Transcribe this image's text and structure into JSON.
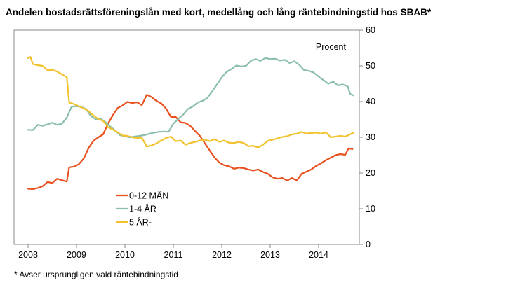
{
  "title": "Andelen bostadsrättsföreningslån med kort, medellång och lång räntebindningstid hos SBAB*",
  "footnote": "* Avser ursprungligen vald räntebindningstid",
  "chart_data": {
    "type": "line",
    "ylabel": "Procent",
    "ylim": [
      0,
      60
    ],
    "yticks": [
      0,
      10,
      20,
      30,
      40,
      50,
      60
    ],
    "y_axis_side": "right",
    "xlim": [
      2008,
      2014.75
    ],
    "xticks": [
      "2008",
      "2009",
      "2010",
      "2011",
      "2012",
      "2013",
      "2014"
    ],
    "grid": false,
    "legend_placement": "center-left",
    "series": [
      {
        "name": "0-12 MÅN",
        "color": "#e8501e",
        "points": [
          [
            2008.0,
            15.6
          ],
          [
            2008.1,
            15.5
          ],
          [
            2008.2,
            15.8
          ],
          [
            2008.3,
            16.3
          ],
          [
            2008.4,
            17.5
          ],
          [
            2008.5,
            17.2
          ],
          [
            2008.6,
            18.4
          ],
          [
            2008.7,
            18.0
          ],
          [
            2008.8,
            17.6
          ],
          [
            2008.85,
            21.6
          ],
          [
            2008.95,
            21.8
          ],
          [
            2009.05,
            22.5
          ],
          [
            2009.15,
            24.1
          ],
          [
            2009.25,
            27.0
          ],
          [
            2009.35,
            29.0
          ],
          [
            2009.45,
            30.0
          ],
          [
            2009.55,
            30.8
          ],
          [
            2009.65,
            33.8
          ],
          [
            2009.75,
            36.2
          ],
          [
            2009.85,
            38.2
          ],
          [
            2009.95,
            38.9
          ],
          [
            2010.05,
            39.9
          ],
          [
            2010.15,
            39.6
          ],
          [
            2010.25,
            39.8
          ],
          [
            2010.35,
            39.0
          ],
          [
            2010.45,
            41.9
          ],
          [
            2010.55,
            41.3
          ],
          [
            2010.65,
            40.2
          ],
          [
            2010.75,
            39.5
          ],
          [
            2010.85,
            38.0
          ],
          [
            2010.95,
            35.7
          ],
          [
            2011.05,
            35.7
          ],
          [
            2011.15,
            34.2
          ],
          [
            2011.25,
            34.0
          ],
          [
            2011.35,
            33.2
          ],
          [
            2011.45,
            31.7
          ],
          [
            2011.55,
            30.4
          ],
          [
            2011.65,
            28.3
          ],
          [
            2011.75,
            26.3
          ],
          [
            2011.85,
            24.4
          ],
          [
            2011.95,
            22.9
          ],
          [
            2012.05,
            22.2
          ],
          [
            2012.15,
            21.9
          ],
          [
            2012.25,
            21.2
          ],
          [
            2012.35,
            21.5
          ],
          [
            2012.45,
            21.4
          ],
          [
            2012.55,
            21.0
          ],
          [
            2012.65,
            20.7
          ],
          [
            2012.75,
            21.0
          ],
          [
            2012.85,
            20.3
          ],
          [
            2012.95,
            19.8
          ],
          [
            2013.05,
            18.8
          ],
          [
            2013.15,
            18.4
          ],
          [
            2013.25,
            18.6
          ],
          [
            2013.35,
            17.9
          ],
          [
            2013.45,
            18.6
          ],
          [
            2013.55,
            17.9
          ],
          [
            2013.65,
            19.8
          ],
          [
            2013.75,
            20.4
          ],
          [
            2013.85,
            21.0
          ],
          [
            2013.95,
            22.0
          ],
          [
            2014.05,
            22.7
          ],
          [
            2014.15,
            23.6
          ],
          [
            2014.25,
            24.3
          ],
          [
            2014.35,
            25.0
          ],
          [
            2014.45,
            25.3
          ],
          [
            2014.55,
            25.1
          ],
          [
            2014.62,
            26.9
          ],
          [
            2014.7,
            26.7
          ]
        ]
      },
      {
        "name": "1-4 ÅR",
        "color": "#8bbfa9",
        "points": [
          [
            2008.0,
            32.1
          ],
          [
            2008.1,
            32.0
          ],
          [
            2008.2,
            33.5
          ],
          [
            2008.3,
            33.2
          ],
          [
            2008.4,
            33.6
          ],
          [
            2008.5,
            34.1
          ],
          [
            2008.6,
            33.5
          ],
          [
            2008.7,
            33.8
          ],
          [
            2008.8,
            35.5
          ],
          [
            2008.9,
            38.6
          ],
          [
            2009.0,
            38.7
          ],
          [
            2009.1,
            38.5
          ],
          [
            2009.2,
            37.9
          ],
          [
            2009.3,
            35.9
          ],
          [
            2009.4,
            35.0
          ],
          [
            2009.5,
            35.2
          ],
          [
            2009.6,
            34.2
          ],
          [
            2009.7,
            33.0
          ],
          [
            2009.8,
            31.9
          ],
          [
            2009.9,
            30.6
          ],
          [
            2010.0,
            30.3
          ],
          [
            2010.1,
            30.0
          ],
          [
            2010.2,
            30.2
          ],
          [
            2010.3,
            30.4
          ],
          [
            2010.4,
            30.6
          ],
          [
            2010.5,
            31.0
          ],
          [
            2010.6,
            31.3
          ],
          [
            2010.7,
            31.5
          ],
          [
            2010.8,
            31.6
          ],
          [
            2010.9,
            31.5
          ],
          [
            2011.0,
            33.8
          ],
          [
            2011.1,
            35.1
          ],
          [
            2011.2,
            36.3
          ],
          [
            2011.3,
            37.9
          ],
          [
            2011.4,
            38.6
          ],
          [
            2011.5,
            39.7
          ],
          [
            2011.6,
            40.2
          ],
          [
            2011.7,
            41.0
          ],
          [
            2011.8,
            42.8
          ],
          [
            2011.9,
            44.8
          ],
          [
            2012.0,
            46.8
          ],
          [
            2012.1,
            48.3
          ],
          [
            2012.2,
            49.1
          ],
          [
            2012.3,
            50.1
          ],
          [
            2012.4,
            49.8
          ],
          [
            2012.5,
            50.0
          ],
          [
            2012.6,
            51.4
          ],
          [
            2012.7,
            51.9
          ],
          [
            2012.8,
            51.4
          ],
          [
            2012.9,
            52.2
          ],
          [
            2013.0,
            51.9
          ],
          [
            2013.1,
            52.0
          ],
          [
            2013.2,
            51.5
          ],
          [
            2013.3,
            51.7
          ],
          [
            2013.4,
            50.8
          ],
          [
            2013.5,
            51.3
          ],
          [
            2013.6,
            50.3
          ],
          [
            2013.7,
            48.8
          ],
          [
            2013.8,
            48.6
          ],
          [
            2013.9,
            48.1
          ],
          [
            2014.0,
            47.0
          ],
          [
            2014.1,
            46.0
          ],
          [
            2014.2,
            45.0
          ],
          [
            2014.3,
            45.6
          ],
          [
            2014.4,
            44.5
          ],
          [
            2014.5,
            44.8
          ],
          [
            2014.6,
            44.3
          ],
          [
            2014.65,
            42.2
          ],
          [
            2014.72,
            41.7
          ]
        ]
      },
      {
        "name": "5 ÅR-",
        "color": "#f2c22e",
        "points": [
          [
            2008.0,
            52.2
          ],
          [
            2008.05,
            52.5
          ],
          [
            2008.1,
            50.5
          ],
          [
            2008.2,
            50.2
          ],
          [
            2008.3,
            50.0
          ],
          [
            2008.4,
            48.8
          ],
          [
            2008.5,
            48.9
          ],
          [
            2008.6,
            48.4
          ],
          [
            2008.7,
            47.6
          ],
          [
            2008.8,
            46.8
          ],
          [
            2008.85,
            39.7
          ],
          [
            2008.95,
            39.3
          ],
          [
            2009.05,
            38.7
          ],
          [
            2009.15,
            38.1
          ],
          [
            2009.25,
            37.3
          ],
          [
            2009.35,
            36.1
          ],
          [
            2009.45,
            35.1
          ],
          [
            2009.55,
            34.6
          ],
          [
            2009.65,
            32.8
          ],
          [
            2009.75,
            32.2
          ],
          [
            2009.85,
            31.4
          ],
          [
            2009.95,
            30.5
          ],
          [
            2010.05,
            30.4
          ],
          [
            2010.15,
            30.0
          ],
          [
            2010.25,
            29.8
          ],
          [
            2010.35,
            29.9
          ],
          [
            2010.45,
            27.4
          ],
          [
            2010.55,
            27.7
          ],
          [
            2010.65,
            28.3
          ],
          [
            2010.75,
            29.1
          ],
          [
            2010.85,
            29.8
          ],
          [
            2010.95,
            30.2
          ],
          [
            2011.05,
            28.9
          ],
          [
            2011.15,
            29.1
          ],
          [
            2011.25,
            27.9
          ],
          [
            2011.35,
            28.4
          ],
          [
            2011.45,
            28.7
          ],
          [
            2011.55,
            29.1
          ],
          [
            2011.65,
            29.3
          ],
          [
            2011.75,
            28.9
          ],
          [
            2011.85,
            29.5
          ],
          [
            2011.95,
            28.7
          ],
          [
            2012.05,
            29.1
          ],
          [
            2012.15,
            28.5
          ],
          [
            2012.25,
            28.4
          ],
          [
            2012.35,
            28.7
          ],
          [
            2012.45,
            28.4
          ],
          [
            2012.55,
            27.5
          ],
          [
            2012.65,
            27.6
          ],
          [
            2012.75,
            27.1
          ],
          [
            2012.85,
            27.9
          ],
          [
            2012.95,
            29.0
          ],
          [
            2013.05,
            29.3
          ],
          [
            2013.15,
            29.7
          ],
          [
            2013.25,
            30.1
          ],
          [
            2013.35,
            30.3
          ],
          [
            2013.45,
            30.8
          ],
          [
            2013.55,
            31.0
          ],
          [
            2013.65,
            31.5
          ],
          [
            2013.75,
            31.0
          ],
          [
            2013.85,
            31.2
          ],
          [
            2013.95,
            31.3
          ],
          [
            2014.05,
            31.0
          ],
          [
            2014.15,
            31.4
          ],
          [
            2014.25,
            30.0
          ],
          [
            2014.35,
            30.2
          ],
          [
            2014.45,
            30.4
          ],
          [
            2014.55,
            30.2
          ],
          [
            2014.65,
            30.8
          ],
          [
            2014.72,
            31.3
          ]
        ]
      }
    ]
  }
}
